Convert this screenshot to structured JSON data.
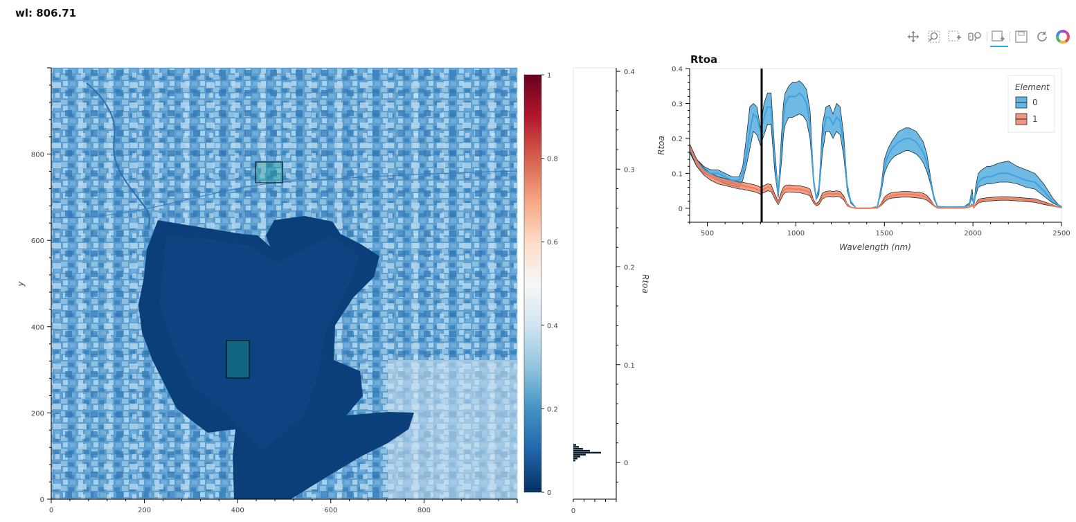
{
  "header": {
    "title": "wl: 806.71"
  },
  "toolbar": {
    "tools": [
      "pan-icon",
      "box-zoom-icon",
      "box-select-icon",
      "hover-icon",
      "box-edit-icon",
      "save-icon",
      "reset-icon",
      "bokeh-logo-icon"
    ],
    "active": "box-edit-icon"
  },
  "image_plot": {
    "ylabel": "y",
    "x_ticks": [
      "0",
      "200",
      "400",
      "600",
      "800"
    ],
    "y_ticks": [
      "0",
      "200",
      "400",
      "600",
      "800"
    ],
    "colorbar": {
      "colormap": "RdBu_r",
      "ticks": [
        "0",
        "0.2",
        "0.4",
        "0.6",
        "0.8",
        "1"
      ]
    }
  },
  "histogram": {
    "ylabel": "Rtoa",
    "y_ticks": [
      "0",
      "0.1",
      "0.2",
      "0.3",
      "0.4"
    ],
    "x_ticks": [
      "0"
    ]
  },
  "chart_data": {
    "type": "area",
    "title": "Rtoa",
    "xlabel": "Wavelength (nm)",
    "ylabel": "Rtoa",
    "xlim": [
      400,
      2500
    ],
    "ylim": [
      -0.04,
      0.4
    ],
    "x_ticks": [
      "500",
      "1000",
      "1500",
      "2000",
      "2500"
    ],
    "y_ticks": [
      "0",
      "0.1",
      "0.2",
      "0.3",
      "0.4"
    ],
    "current_wavelength": 806.71,
    "legend": {
      "title": "Element",
      "placement": "top-right"
    },
    "x": [
      400,
      440,
      480,
      520,
      560,
      600,
      640,
      680,
      700,
      720,
      740,
      760,
      780,
      800,
      820,
      840,
      860,
      880,
      900,
      920,
      930,
      940,
      960,
      980,
      1000,
      1020,
      1040,
      1060,
      1080,
      1100,
      1115,
      1130,
      1150,
      1170,
      1190,
      1210,
      1230,
      1250,
      1270,
      1290,
      1310,
      1340,
      1380,
      1420,
      1460,
      1480,
      1500,
      1520,
      1540,
      1560,
      1580,
      1600,
      1620,
      1640,
      1660,
      1680,
      1700,
      1720,
      1740,
      1760,
      1780,
      1800,
      1850,
      1900,
      1950,
      1980,
      1995,
      2005,
      2015,
      2030,
      2050,
      2080,
      2100,
      2150,
      2200,
      2250,
      2300,
      2350,
      2400,
      2450,
      2480,
      2500
    ],
    "series": [
      {
        "name": "0",
        "color": "#3ea3dc",
        "mean": [
          0.17,
          0.13,
          0.11,
          0.1,
          0.1,
          0.09,
          0.08,
          0.08,
          0.1,
          0.15,
          0.22,
          0.27,
          0.26,
          0.22,
          0.26,
          0.29,
          0.29,
          0.14,
          0.04,
          0.18,
          0.26,
          0.3,
          0.32,
          0.32,
          0.32,
          0.33,
          0.32,
          0.3,
          0.24,
          0.08,
          0.03,
          0.05,
          0.2,
          0.26,
          0.26,
          0.24,
          0.26,
          0.25,
          0.18,
          0.06,
          0.02,
          0.0,
          0.0,
          0.0,
          0.005,
          0.05,
          0.12,
          0.15,
          0.17,
          0.18,
          0.19,
          0.195,
          0.2,
          0.2,
          0.195,
          0.19,
          0.175,
          0.16,
          0.13,
          0.08,
          0.03,
          0.005,
          0.003,
          0.003,
          0.004,
          0.01,
          0.04,
          0.01,
          0.045,
          0.075,
          0.085,
          0.09,
          0.09,
          0.1,
          0.1,
          0.09,
          0.08,
          0.075,
          0.05,
          0.02,
          0.01,
          0.005
        ],
        "upper": [
          0.18,
          0.14,
          0.12,
          0.11,
          0.11,
          0.1,
          0.09,
          0.09,
          0.12,
          0.2,
          0.29,
          0.3,
          0.29,
          0.23,
          0.3,
          0.33,
          0.33,
          0.17,
          0.05,
          0.22,
          0.3,
          0.33,
          0.35,
          0.36,
          0.36,
          0.365,
          0.355,
          0.34,
          0.28,
          0.09,
          0.03,
          0.06,
          0.24,
          0.29,
          0.295,
          0.27,
          0.3,
          0.29,
          0.21,
          0.07,
          0.02,
          0.0,
          0.0,
          0.0,
          0.005,
          0.06,
          0.14,
          0.17,
          0.19,
          0.205,
          0.22,
          0.225,
          0.23,
          0.23,
          0.225,
          0.22,
          0.205,
          0.19,
          0.155,
          0.09,
          0.035,
          0.006,
          0.004,
          0.004,
          0.005,
          0.015,
          0.055,
          0.012,
          0.06,
          0.1,
          0.11,
          0.12,
          0.12,
          0.13,
          0.135,
          0.12,
          0.11,
          0.1,
          0.07,
          0.03,
          0.012,
          0.006
        ],
        "lower": [
          0.16,
          0.12,
          0.1,
          0.09,
          0.08,
          0.07,
          0.065,
          0.06,
          0.08,
          0.12,
          0.17,
          0.22,
          0.21,
          0.18,
          0.21,
          0.24,
          0.24,
          0.11,
          0.03,
          0.14,
          0.21,
          0.24,
          0.26,
          0.26,
          0.265,
          0.27,
          0.265,
          0.25,
          0.2,
          0.07,
          0.025,
          0.04,
          0.16,
          0.22,
          0.22,
          0.2,
          0.22,
          0.21,
          0.15,
          0.05,
          0.015,
          0.0,
          0.0,
          0.0,
          0.004,
          0.04,
          0.1,
          0.125,
          0.14,
          0.15,
          0.155,
          0.16,
          0.165,
          0.165,
          0.16,
          0.155,
          0.145,
          0.13,
          0.105,
          0.07,
          0.025,
          0.004,
          0.002,
          0.002,
          0.003,
          0.008,
          0.03,
          0.008,
          0.035,
          0.06,
          0.065,
          0.07,
          0.07,
          0.075,
          0.075,
          0.07,
          0.06,
          0.055,
          0.035,
          0.015,
          0.008,
          0.003
        ]
      },
      {
        "name": "1",
        "color": "#f07c5a",
        "mean": [
          0.175,
          0.13,
          0.105,
          0.09,
          0.08,
          0.075,
          0.07,
          0.065,
          0.065,
          0.062,
          0.06,
          0.058,
          0.055,
          0.05,
          0.055,
          0.06,
          0.058,
          0.035,
          0.015,
          0.04,
          0.05,
          0.055,
          0.057,
          0.056,
          0.055,
          0.055,
          0.052,
          0.05,
          0.045,
          0.02,
          0.01,
          0.015,
          0.035,
          0.04,
          0.042,
          0.04,
          0.042,
          0.04,
          0.03,
          0.01,
          0.003,
          0.0,
          0.0,
          0.0,
          0.001,
          0.01,
          0.025,
          0.033,
          0.037,
          0.038,
          0.039,
          0.04,
          0.04,
          0.04,
          0.039,
          0.038,
          0.037,
          0.035,
          0.03,
          0.02,
          0.008,
          0.001,
          0.001,
          0.001,
          0.001,
          0.003,
          0.01,
          0.002,
          0.01,
          0.02,
          0.023,
          0.025,
          0.026,
          0.028,
          0.028,
          0.026,
          0.024,
          0.022,
          0.015,
          0.008,
          0.004,
          0.002
        ],
        "upper": [
          0.185,
          0.14,
          0.115,
          0.1,
          0.09,
          0.085,
          0.08,
          0.075,
          0.075,
          0.072,
          0.07,
          0.068,
          0.065,
          0.06,
          0.065,
          0.07,
          0.068,
          0.042,
          0.02,
          0.05,
          0.06,
          0.065,
          0.067,
          0.066,
          0.065,
          0.065,
          0.062,
          0.06,
          0.055,
          0.025,
          0.013,
          0.02,
          0.043,
          0.048,
          0.05,
          0.048,
          0.05,
          0.048,
          0.036,
          0.013,
          0.004,
          0.0,
          0.0,
          0.0,
          0.002,
          0.013,
          0.032,
          0.04,
          0.045,
          0.046,
          0.047,
          0.048,
          0.048,
          0.048,
          0.047,
          0.046,
          0.045,
          0.043,
          0.037,
          0.025,
          0.01,
          0.002,
          0.002,
          0.002,
          0.002,
          0.004,
          0.013,
          0.003,
          0.013,
          0.025,
          0.028,
          0.03,
          0.031,
          0.033,
          0.033,
          0.031,
          0.029,
          0.027,
          0.019,
          0.01,
          0.005,
          0.003
        ],
        "lower": [
          0.165,
          0.12,
          0.095,
          0.08,
          0.07,
          0.065,
          0.06,
          0.055,
          0.055,
          0.052,
          0.05,
          0.048,
          0.045,
          0.04,
          0.045,
          0.05,
          0.048,
          0.028,
          0.01,
          0.03,
          0.04,
          0.045,
          0.047,
          0.046,
          0.045,
          0.045,
          0.042,
          0.04,
          0.035,
          0.015,
          0.007,
          0.01,
          0.027,
          0.032,
          0.034,
          0.032,
          0.034,
          0.032,
          0.024,
          0.007,
          0.002,
          0.0,
          0.0,
          0.0,
          0.0,
          0.007,
          0.018,
          0.026,
          0.029,
          0.03,
          0.031,
          0.032,
          0.032,
          0.032,
          0.031,
          0.03,
          0.029,
          0.027,
          0.023,
          0.015,
          0.006,
          0.0,
          0.0,
          0.0,
          0.0,
          0.002,
          0.007,
          0.001,
          0.007,
          0.015,
          0.018,
          0.02,
          0.021,
          0.023,
          0.023,
          0.021,
          0.019,
          0.017,
          0.011,
          0.006,
          0.003,
          0.001
        ]
      }
    ]
  }
}
